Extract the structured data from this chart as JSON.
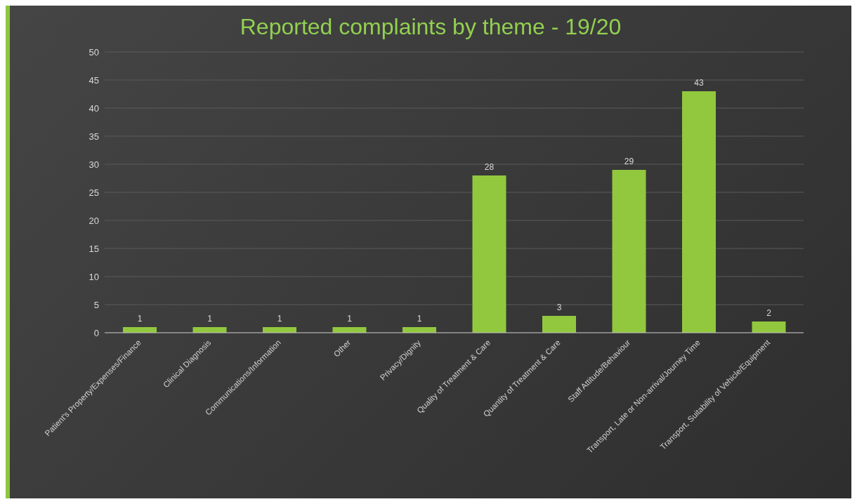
{
  "chart_data": {
    "type": "bar",
    "title": "Reported complaints by theme - 19/20",
    "categories": [
      "Patient's Property/Expenses/Finance",
      "Clinical Diagnosis",
      "Communications/Information",
      "Other",
      "Privacy/Dignity",
      "Quality of Treatment & Care",
      "Quantity of Treatment & Care",
      "Staff Attitude/Behaviour",
      "Transport, Late or Non-arrival/Journey Time",
      "Transport, Suitability of Vehicle/Equipment"
    ],
    "values": [
      1,
      1,
      1,
      1,
      1,
      28,
      3,
      29,
      43,
      2
    ],
    "color": "#92c83e",
    "ylim": [
      0,
      50
    ],
    "yticks": [
      0,
      5,
      10,
      15,
      20,
      25,
      30,
      35,
      40,
      45,
      50
    ],
    "grid": "y",
    "data_labels": true
  }
}
